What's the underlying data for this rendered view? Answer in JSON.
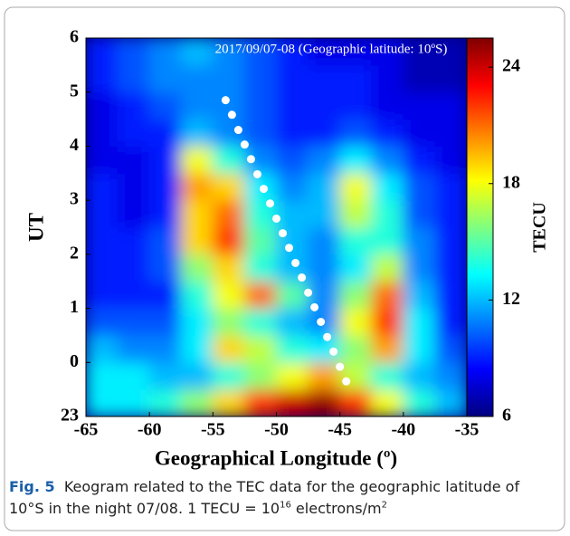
{
  "chart_data": {
    "type": "heatmap",
    "title": "2017/09/07-08 (Geographic latitude: 10ºS)",
    "x_label": "Geographical Longitude (º)",
    "y_label": "UT",
    "colorbar_label": "TECU",
    "xlim": [
      -65,
      -35
    ],
    "xticks": [
      -65,
      -60,
      -55,
      -50,
      -45,
      -40,
      -35
    ],
    "ylim": [
      -1,
      6
    ],
    "yticks": [
      {
        "value": -1,
        "label": "23"
      },
      {
        "value": 0,
        "label": "0"
      },
      1,
      2,
      3,
      4,
      5,
      6
    ],
    "xbins": [
      -65,
      -62.5,
      -60,
      -57.5,
      -55,
      -52.5,
      -50,
      -47.5,
      -45,
      -42.5,
      -40,
      -37.5,
      -35
    ],
    "ybins": [
      -1,
      -0.5,
      0,
      0.5,
      1,
      1.5,
      2,
      2.5,
      3,
      3.5,
      4,
      4.5,
      5,
      5.5,
      6
    ],
    "z": [
      [
        13,
        13,
        14,
        16,
        19,
        22,
        24,
        25,
        22,
        18,
        14,
        12
      ],
      [
        13,
        13,
        12,
        12,
        14,
        16,
        18,
        20,
        17,
        14,
        12,
        11
      ],
      [
        12,
        11,
        11,
        13,
        19,
        17,
        14,
        13,
        16,
        20,
        13,
        10
      ],
      [
        10,
        10,
        10,
        13,
        16,
        14,
        12,
        11,
        18,
        22,
        13,
        9
      ],
      [
        9,
        9,
        9,
        14,
        18,
        21,
        15,
        11,
        16,
        21,
        12,
        9
      ],
      [
        9,
        9,
        10,
        16,
        19,
        14,
        12,
        11,
        13,
        17,
        11,
        9
      ],
      [
        9,
        9,
        10,
        19,
        22,
        15,
        12,
        11,
        14,
        14,
        11,
        9
      ],
      [
        9,
        8,
        9,
        19,
        21,
        14,
        12,
        12,
        17,
        14,
        10,
        9
      ],
      [
        9,
        8,
        9,
        20,
        19,
        13,
        11,
        12,
        18,
        13,
        10,
        9
      ],
      [
        8,
        8,
        9,
        18,
        14,
        11,
        10,
        11,
        13,
        11,
        9,
        8
      ],
      [
        8,
        9,
        9,
        12,
        11,
        10,
        9,
        9,
        10,
        9,
        8,
        8
      ],
      [
        8,
        9,
        10,
        11,
        11,
        10,
        9,
        9,
        9,
        8,
        8,
        8
      ],
      [
        9,
        10,
        11,
        11,
        11,
        10,
        9,
        9,
        9,
        8,
        7,
        7
      ],
      [
        9,
        10,
        11,
        12,
        11,
        10,
        9,
        8,
        8,
        8,
        7,
        7
      ]
    ],
    "clim": [
      6,
      25.5
    ],
    "cticks": [
      6,
      12,
      18,
      24
    ],
    "dots": {
      "color": "#ffffff",
      "x": [
        -54,
        -53.5,
        -53,
        -52.5,
        -52,
        -51.5,
        -51,
        -50.5,
        -50,
        -49.5,
        -49,
        -48.5,
        -48,
        -47.5,
        -47,
        -46.5,
        -46,
        -45.5,
        -45,
        -44.5
      ],
      "y": [
        4.85,
        4.58,
        4.3,
        4.03,
        3.76,
        3.48,
        3.21,
        2.94,
        2.66,
        2.39,
        2.12,
        1.84,
        1.57,
        1.29,
        1.02,
        0.75,
        0.47,
        0.2,
        -0.08,
        -0.35
      ]
    }
  },
  "caption": {
    "label": "Fig. 5",
    "line1": "Keogram related to the TEC data for the geographic latitude of",
    "line2": "10°S in the night 07/08. 1 TECU = 10",
    "sup1": "16",
    "mid": " electrons/m",
    "sup2": "2"
  }
}
